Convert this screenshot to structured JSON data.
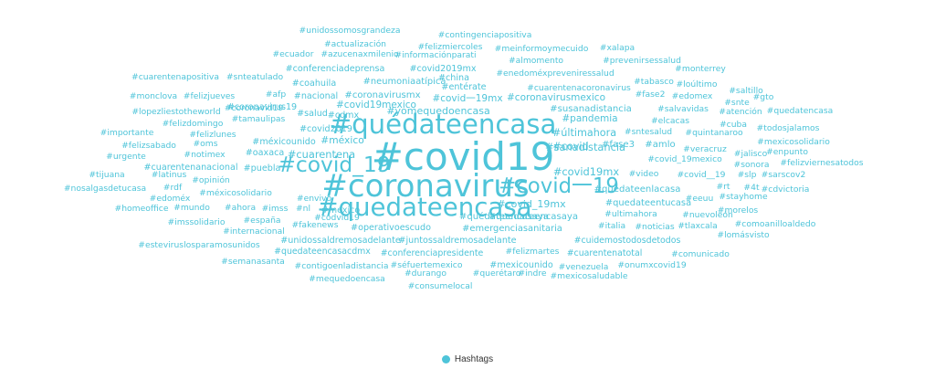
{
  "chart_data": {
    "type": "wordcloud",
    "color": "#4ec4d9",
    "legend": {
      "label": "Hashtags",
      "placement": "bottom-center"
    },
    "words": [
      {
        "text": "#covid19",
        "weight": 100
      },
      {
        "text": "#coronavirus",
        "weight": 75
      },
      {
        "text": "#quédateencasa",
        "weight": 60
      },
      {
        "text": "#quedateencasa",
        "weight": 55
      },
      {
        "text": "#covid_19",
        "weight": 42
      },
      {
        "text": "#covid一19",
        "weight": 40
      },
      {
        "text": "#cuarentena",
        "weight": 28
      },
      {
        "text": "#sanadistancia",
        "weight": 28
      },
      {
        "text": "#covid19mx",
        "weight": 28
      },
      {
        "text": "#covid",
        "weight": 27
      },
      {
        "text": "#últimahora",
        "weight": 27
      },
      {
        "text": "#yomequedoencasa",
        "weight": 26
      },
      {
        "text": "#covid_19mx",
        "weight": 26
      },
      {
        "text": "#méxico",
        "weight": 25
      },
      {
        "text": "#covid19mexico",
        "weight": 24
      },
      {
        "text": "#covid一19mx",
        "weight": 24
      },
      {
        "text": "#coronavirusmexico",
        "weight": 24
      },
      {
        "text": "#pandemia",
        "weight": 24
      },
      {
        "text": "#susanadistancia",
        "weight": 22
      },
      {
        "text": "#quedateencasaya",
        "weight": 22
      },
      {
        "text": "#fase3",
        "weight": 22
      },
      {
        "text": "#amlo",
        "weight": 22
      },
      {
        "text": "#quédateencasaya",
        "weight": 22
      },
      {
        "text": "#coronavirusmx",
        "weight": 22
      },
      {
        "text": "#quedateenlacasa",
        "weight": 22
      },
      {
        "text": "#quedateentucasa",
        "weight": 21
      },
      {
        "text": "#emergenciasanitaria",
        "weight": 21
      },
      {
        "text": "#neumoniaatípica",
        "weight": 21
      },
      {
        "text": "#covid2019mx",
        "weight": 20
      },
      {
        "text": "#conferenciadeprensa",
        "weight": 20
      },
      {
        "text": "#covid2019",
        "weight": 20
      },
      {
        "text": "#cdmx",
        "weight": 20
      },
      {
        "text": "#salud",
        "weight": 20
      },
      {
        "text": "#nacional",
        "weight": 20
      },
      {
        "text": "#coahuila",
        "weight": 20
      },
      {
        "text": "#china",
        "weight": 20
      },
      {
        "text": "#entérate",
        "weight": 20
      },
      {
        "text": "#coronavirus19",
        "weight": 20
      },
      {
        "text": "#puebla",
        "weight": 20
      },
      {
        "text": "#oaxaca",
        "weight": 20
      },
      {
        "text": "#méxicounido",
        "weight": 20
      },
      {
        "text": "#mexicounido",
        "weight": 20
      },
      {
        "text": "#cuarentenanacional",
        "weight": 20
      },
      {
        "text": "#mexico",
        "weight": 20
      },
      {
        "text": "#juntossaldremosadelante",
        "weight": 20
      },
      {
        "text": "#unidossaldremosadelante",
        "weight": 20
      },
      {
        "text": "#operativoescudo",
        "weight": 20
      },
      {
        "text": "#cuarentenatotal",
        "weight": 19
      },
      {
        "text": "#conferenciapresidente",
        "weight": 19
      },
      {
        "text": "#cuidemostodosdetodos",
        "weight": 19
      },
      {
        "text": "#quedateencasacdmx",
        "weight": 19
      },
      {
        "text": "#unidossomosgrandeza",
        "weight": 18
      },
      {
        "text": "#contingenciapositiva",
        "weight": 18
      },
      {
        "text": "#actualización",
        "weight": 18
      },
      {
        "text": "#felizmiercoles",
        "weight": 18
      },
      {
        "text": "#meinformoymecuido",
        "weight": 18
      },
      {
        "text": "#xalapa",
        "weight": 18
      },
      {
        "text": "#ecuador",
        "weight": 18
      },
      {
        "text": "#azucenaxmilenio",
        "weight": 18
      },
      {
        "text": "#informaciónparati",
        "weight": 18
      },
      {
        "text": "#almomento",
        "weight": 18
      },
      {
        "text": "#prevenirsessalud",
        "weight": 18
      },
      {
        "text": "#monterrey",
        "weight": 18
      },
      {
        "text": "#cuarentenapositiva",
        "weight": 18
      },
      {
        "text": "#snteatulado",
        "weight": 18
      },
      {
        "text": "#enedoméxpreveniressalud",
        "weight": 18
      },
      {
        "text": "#cuarentenacoronavirus",
        "weight": 18
      },
      {
        "text": "#tabasco",
        "weight": 18
      },
      {
        "text": "#loúltimo",
        "weight": 18
      },
      {
        "text": "#saltillo",
        "weight": 18
      },
      {
        "text": "#monclova",
        "weight": 18
      },
      {
        "text": "#felizjueves",
        "weight": 18
      },
      {
        "text": "#afp",
        "weight": 18
      },
      {
        "text": "#fase2",
        "weight": 18
      },
      {
        "text": "#edomex",
        "weight": 18
      },
      {
        "text": "#snte",
        "weight": 18
      },
      {
        "text": "#gto",
        "weight": 18
      },
      {
        "text": "#lopezliestotheworld",
        "weight": 18
      },
      {
        "text": "#coronavid19",
        "weight": 18
      },
      {
        "text": "#salvavidas",
        "weight": 18
      },
      {
        "text": "#atención",
        "weight": 18
      },
      {
        "text": "#quedatencasa",
        "weight": 18
      },
      {
        "text": "#felizdomingo",
        "weight": 18
      },
      {
        "text": "#tamaulipas",
        "weight": 18
      },
      {
        "text": "#elcacas",
        "weight": 18
      },
      {
        "text": "#cuba",
        "weight": 18
      },
      {
        "text": "#todosjalamos",
        "weight": 18
      },
      {
        "text": "#importante",
        "weight": 18
      },
      {
        "text": "#felizlunes",
        "weight": 18
      },
      {
        "text": "#sntesalud",
        "weight": 18
      },
      {
        "text": "#quintanaroo",
        "weight": 18
      },
      {
        "text": "#mexicosolidario",
        "weight": 18
      },
      {
        "text": "#felizsabado",
        "weight": 18
      },
      {
        "text": "#oms",
        "weight": 18
      },
      {
        "text": "#veracruz",
        "weight": 18
      },
      {
        "text": "#jalisco",
        "weight": 18
      },
      {
        "text": "#enpunto",
        "weight": 18
      },
      {
        "text": "#urgente",
        "weight": 18
      },
      {
        "text": "#notimex",
        "weight": 18
      },
      {
        "text": "#covid_19mexico",
        "weight": 18
      },
      {
        "text": "#sonora",
        "weight": 18
      },
      {
        "text": "#felizviernesatodos",
        "weight": 18
      },
      {
        "text": "#tijuana",
        "weight": 18
      },
      {
        "text": "#latinus",
        "weight": 18
      },
      {
        "text": "#video",
        "weight": 18
      },
      {
        "text": "#covid__19",
        "weight": 18
      },
      {
        "text": "#slp",
        "weight": 18
      },
      {
        "text": "#sarscov2",
        "weight": 18
      },
      {
        "text": "#opinión",
        "weight": 18
      },
      {
        "text": "#nosalgasdetucasa",
        "weight": 18
      },
      {
        "text": "#rdf",
        "weight": 18
      },
      {
        "text": "#méxicosolidario",
        "weight": 18
      },
      {
        "text": "#rt",
        "weight": 18
      },
      {
        "text": "#4t",
        "weight": 18
      },
      {
        "text": "#cdvictoria",
        "weight": 18
      },
      {
        "text": "#edoméx",
        "weight": 18
      },
      {
        "text": "#envivo",
        "weight": 18
      },
      {
        "text": "#eeuu",
        "weight": 18
      },
      {
        "text": "#stayhome",
        "weight": 18
      },
      {
        "text": "#homeoffice",
        "weight": 18
      },
      {
        "text": "#mundo",
        "weight": 18
      },
      {
        "text": "#ahora",
        "weight": 18
      },
      {
        "text": "#imss",
        "weight": 18
      },
      {
        "text": "#nl",
        "weight": 18
      },
      {
        "text": "#morelos",
        "weight": 18
      },
      {
        "text": "#imssolidario",
        "weight": 18
      },
      {
        "text": "#españa",
        "weight": 18
      },
      {
        "text": "#ultimahora",
        "weight": 18
      },
      {
        "text": "#nuevoleón",
        "weight": 18
      },
      {
        "text": "#codvid19",
        "weight": 18
      },
      {
        "text": "#fakenews",
        "weight": 18
      },
      {
        "text": "#italia",
        "weight": 18
      },
      {
        "text": "#noticias",
        "weight": 18
      },
      {
        "text": "#tlaxcala",
        "weight": 18
      },
      {
        "text": "#comoanilloaldedo",
        "weight": 18
      },
      {
        "text": "#internacional",
        "weight": 18
      },
      {
        "text": "#lomásvisto",
        "weight": 18
      },
      {
        "text": "#esteviruslosparamosunidos",
        "weight": 18
      },
      {
        "text": "#felizmartes",
        "weight": 18
      },
      {
        "text": "#comunicado",
        "weight": 18
      },
      {
        "text": "#semanasanta",
        "weight": 18
      },
      {
        "text": "#séfuertemexico",
        "weight": 18
      },
      {
        "text": "#venezuela",
        "weight": 18
      },
      {
        "text": "#onumxcovid19",
        "weight": 18
      },
      {
        "text": "#contigoenladistancia",
        "weight": 18
      },
      {
        "text": "#durango",
        "weight": 18
      },
      {
        "text": "#querétaro",
        "weight": 18
      },
      {
        "text": "#indre",
        "weight": 18
      },
      {
        "text": "#mexicosaludable",
        "weight": 18
      },
      {
        "text": "#mequedoencasa",
        "weight": 18
      },
      {
        "text": "#consumelocal",
        "weight": 18
      }
    ]
  }
}
